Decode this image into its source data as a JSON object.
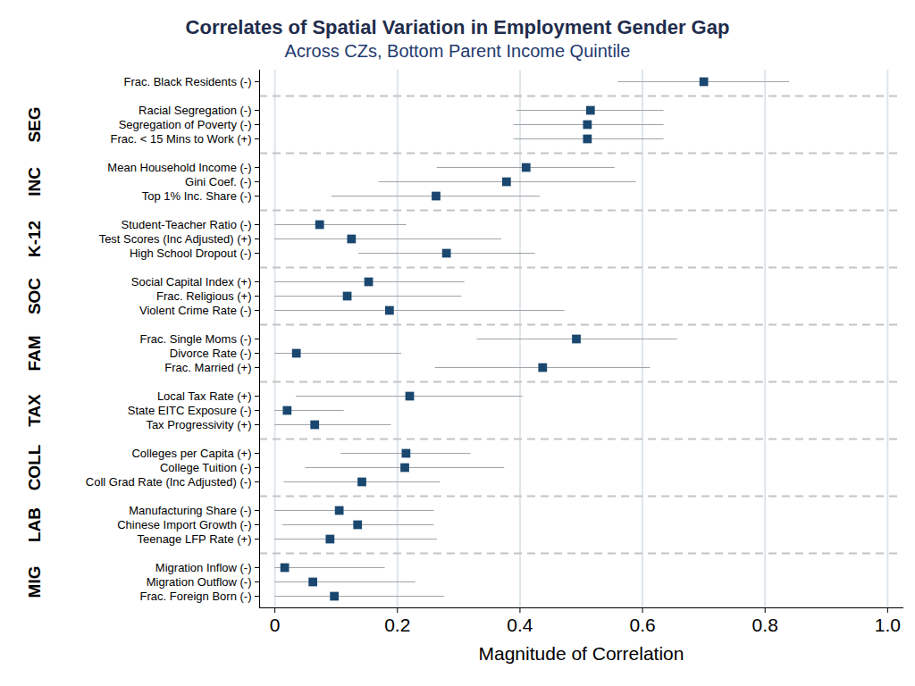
{
  "chart_data": {
    "type": "dot_whisker",
    "title": "Correlates of Spatial Variation in Employment Gender Gap",
    "subtitle": "Across CZs, Bottom Parent Income Quintile",
    "orientation": "horizontal",
    "x_label": "Magnitude of Correlation",
    "categories": [
      "Frac. Black Residents (-)",
      null,
      "Racial Segregation (-)",
      "Segregation of Poverty (-)",
      "Frac. < 15 Mins to Work (+)",
      null,
      "Mean Household Income (-)",
      "Gini Coef. (-)",
      "Top 1% Inc. Share (-)",
      null,
      "Student-Teacher Ratio (-)",
      "Test Scores (Inc Adjusted) (+)",
      "High School Dropout (-)",
      null,
      "Social Capital Index (+)",
      "Frac. Religious (+)",
      "Violent Crime Rate (-)",
      null,
      "Frac. Single Moms (-)",
      "Divorce Rate (-)",
      "Frac. Married (+)",
      null,
      "Local Tax Rate (+)",
      "State EITC Exposure (-)",
      "Tax Progressivity (+)",
      null,
      "Colleges per Capita (+)",
      "College Tuition (-)",
      "Coll Grad Rate (Inc Adjusted) (-)",
      null,
      "Manufacturing Share (-)",
      "Chinese Import Growth (-)",
      "Teenage LFP Rate (+)",
      null,
      "Migration Inflow (-)",
      "Migration Outflow (-)",
      "Frac. Foreign Born (-)"
    ],
    "groups": [
      null,
      null,
      "SEG",
      "SEG",
      "SEG",
      null,
      "INC",
      "INC",
      "INC",
      null,
      "K-12",
      "K-12",
      "K-12",
      null,
      "SOC",
      "SOC",
      "SOC",
      null,
      "FAM",
      "FAM",
      "FAM",
      null,
      "TAX",
      "TAX",
      "TAX",
      null,
      "COLL",
      "COLL",
      "COLL",
      null,
      "LAB",
      "LAB",
      "LAB",
      null,
      "MIG",
      "MIG",
      "MIG"
    ],
    "values": [
      0.7,
      null,
      0.515,
      0.51,
      0.51,
      null,
      0.41,
      0.378,
      0.263,
      null,
      0.073,
      0.125,
      0.28,
      null,
      0.153,
      0.118,
      0.187,
      null,
      0.492,
      0.035,
      0.437,
      null,
      0.22,
      0.02,
      0.065,
      null,
      0.214,
      0.212,
      0.142,
      null,
      0.105,
      0.135,
      0.09,
      null,
      0.016,
      0.062,
      0.097
    ],
    "ci_low": [
      0.56,
      null,
      0.395,
      0.39,
      0.39,
      null,
      0.265,
      0.17,
      0.093,
      null,
      0.0,
      0.0,
      0.137,
      null,
      0.0,
      0.0,
      0.0,
      null,
      0.33,
      0.0,
      0.262,
      null,
      0.035,
      0.0,
      0.0,
      null,
      0.108,
      0.05,
      0.015,
      null,
      0.0,
      0.013,
      0.0,
      null,
      0.0,
      0.0,
      0.0
    ],
    "ci_high": [
      0.84,
      null,
      0.635,
      0.635,
      0.635,
      null,
      0.555,
      0.59,
      0.433,
      null,
      0.215,
      0.37,
      0.425,
      null,
      0.31,
      0.305,
      0.473,
      null,
      0.657,
      0.207,
      0.613,
      null,
      0.405,
      0.113,
      0.19,
      null,
      0.32,
      0.375,
      0.27,
      null,
      0.26,
      0.26,
      0.265,
      null,
      0.18,
      0.23,
      0.277
    ],
    "color": "#1a476f",
    "ci_color": "#a0a4a8",
    "marker": "square",
    "xlim": [
      -0.025,
      1.025
    ],
    "xticks": [
      0,
      0.2,
      0.4,
      0.6,
      0.8,
      {
        "value": 1,
        "label": "1.0"
      }
    ],
    "grid": true
  }
}
